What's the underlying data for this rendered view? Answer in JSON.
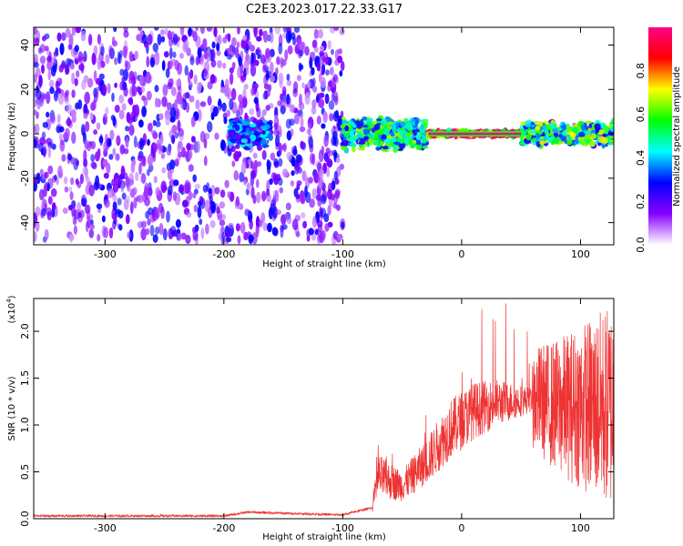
{
  "title": "C2E3.2023.017.22.33.G17",
  "chart_data": [
    {
      "type": "heatmap",
      "xlabel": "Height of straight line (km)",
      "ylabel": "Frequency (Hz)",
      "xlim": [
        -360,
        128
      ],
      "ylim": [
        -50,
        48
      ],
      "xticks": [
        "-300",
        "-200",
        "-100",
        "0",
        "100"
      ],
      "xtick_values": [
        -300,
        -200,
        -100,
        0,
        100
      ],
      "yticks": [
        "-40",
        "-20",
        "0",
        "20",
        "40"
      ],
      "ytick_values": [
        -40,
        -20,
        0,
        20,
        40
      ],
      "colorbar": {
        "label": "Normalized spectral amplitude",
        "ticks": [
          "0.0",
          "0.2",
          "0.4",
          "0.6",
          "0.8"
        ],
        "tick_values": [
          0.0,
          0.2,
          0.4,
          0.6,
          0.8
        ],
        "range": [
          0,
          1
        ],
        "colors": [
          "#ffffff",
          "#8800ff",
          "#0000ff",
          "#00ffff",
          "#00ff00",
          "#ffff00",
          "#ff0000",
          "#ff0088"
        ]
      },
      "features": [
        {
          "x_start": -360,
          "x_end": -100,
          "freq_spread": 48,
          "level": 0.12
        },
        {
          "x_start": -195,
          "x_end": -160,
          "freq_spread": 8,
          "level": 0.3
        },
        {
          "x_start": -100,
          "x_end": -30,
          "freq_spread": 8,
          "level": 0.45
        },
        {
          "x_start": -28,
          "x_end": 50,
          "freq_spread": 1.5,
          "level": 0.95
        },
        {
          "x_start": 50,
          "x_end": 128,
          "freq_spread": 6,
          "level": 0.5
        }
      ]
    },
    {
      "type": "line",
      "xlabel": "Height of straight line (km)",
      "ylabel": "SNR (10 * v/v)",
      "scale_label": "(x10",
      "scale_exp": "4",
      "scale_close": ")",
      "xlim": [
        -360,
        128
      ],
      "ylim": [
        0,
        2.35
      ],
      "xticks": [
        "-300",
        "-200",
        "-100",
        "0",
        "100"
      ],
      "xtick_values": [
        -300,
        -200,
        -100,
        0,
        100
      ],
      "yticks": [
        "0.0",
        "0.5",
        "1.0",
        "1.5",
        "2.0"
      ],
      "ytick_values": [
        0.0,
        0.5,
        1.0,
        1.5,
        2.0
      ],
      "color": "#ee3333",
      "envelope": [
        {
          "x": -360,
          "y": 0.03
        },
        {
          "x": -200,
          "y": 0.03
        },
        {
          "x": -180,
          "y": 0.07
        },
        {
          "x": -100,
          "y": 0.04
        },
        {
          "x": -75,
          "y": 0.12
        },
        {
          "x": -70,
          "y": 0.45
        },
        {
          "x": -50,
          "y": 0.35
        },
        {
          "x": -30,
          "y": 0.6
        },
        {
          "x": -10,
          "y": 0.95
        },
        {
          "x": 10,
          "y": 1.15
        },
        {
          "x": 30,
          "y": 1.24
        },
        {
          "x": 60,
          "y": 1.27
        },
        {
          "x": 70,
          "y": 1.25
        },
        {
          "x": 80,
          "y": 1.2
        },
        {
          "x": 128,
          "y": 1.2
        }
      ]
    }
  ]
}
